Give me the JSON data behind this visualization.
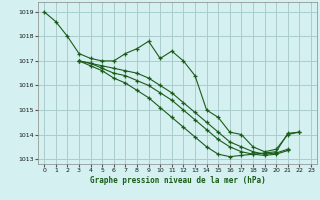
{
  "title": "Graphe pression niveau de la mer (hPa)",
  "background_color": "#d4f0f0",
  "grid_color": "#aacccc",
  "line_color": "#1a5c1a",
  "x_min": -0.5,
  "x_max": 23.5,
  "y_min": 1012.8,
  "y_max": 1019.4,
  "x_ticks": [
    0,
    1,
    2,
    3,
    4,
    5,
    6,
    7,
    8,
    9,
    10,
    11,
    12,
    13,
    14,
    15,
    16,
    17,
    18,
    19,
    20,
    21,
    22,
    23
  ],
  "y_ticks": [
    1013,
    1014,
    1015,
    1016,
    1017,
    1018,
    1019
  ],
  "series": [
    {
      "x": [
        0,
        1,
        2,
        3,
        4,
        5,
        6,
        7,
        8,
        9,
        10,
        11,
        12,
        13,
        14,
        15,
        16,
        17,
        18,
        19,
        20,
        21,
        22
      ],
      "y": [
        1019.0,
        1018.6,
        1018.0,
        1017.3,
        1017.1,
        1017.0,
        1017.0,
        1017.3,
        1017.5,
        1017.8,
        1017.1,
        1017.4,
        1017.0,
        1016.4,
        1015.0,
        1014.7,
        1014.1,
        1014.0,
        1013.5,
        1013.3,
        1013.4,
        1014.0,
        1014.1
      ]
    },
    {
      "x": [
        3,
        4,
        5,
        6,
        7,
        8,
        9,
        10,
        11,
        12,
        13,
        14,
        15,
        16,
        17,
        18,
        19,
        20,
        21
      ],
      "y": [
        1017.0,
        1016.9,
        1016.8,
        1016.7,
        1016.6,
        1016.5,
        1016.3,
        1016.0,
        1015.7,
        1015.3,
        1014.9,
        1014.5,
        1014.1,
        1013.7,
        1013.5,
        1013.3,
        1013.2,
        1013.25,
        1013.4
      ]
    },
    {
      "x": [
        3,
        4,
        5,
        6,
        7,
        8,
        9,
        10,
        11,
        12,
        13,
        14,
        15,
        16,
        17,
        18,
        19,
        20,
        21
      ],
      "y": [
        1017.0,
        1016.9,
        1016.7,
        1016.5,
        1016.4,
        1016.2,
        1016.0,
        1015.7,
        1015.4,
        1015.0,
        1014.6,
        1014.2,
        1013.8,
        1013.5,
        1013.3,
        1013.2,
        1013.15,
        1013.2,
        1013.35
      ]
    },
    {
      "x": [
        3,
        4,
        5,
        6,
        7,
        8,
        9,
        10,
        11,
        12,
        13,
        14,
        15,
        16,
        17,
        18,
        19,
        20,
        21,
        22
      ],
      "y": [
        1017.0,
        1016.8,
        1016.6,
        1016.3,
        1016.1,
        1015.8,
        1015.5,
        1015.1,
        1014.7,
        1014.3,
        1013.9,
        1013.5,
        1013.2,
        1013.1,
        1013.15,
        1013.2,
        1013.25,
        1013.3,
        1014.05,
        1014.1
      ]
    }
  ]
}
